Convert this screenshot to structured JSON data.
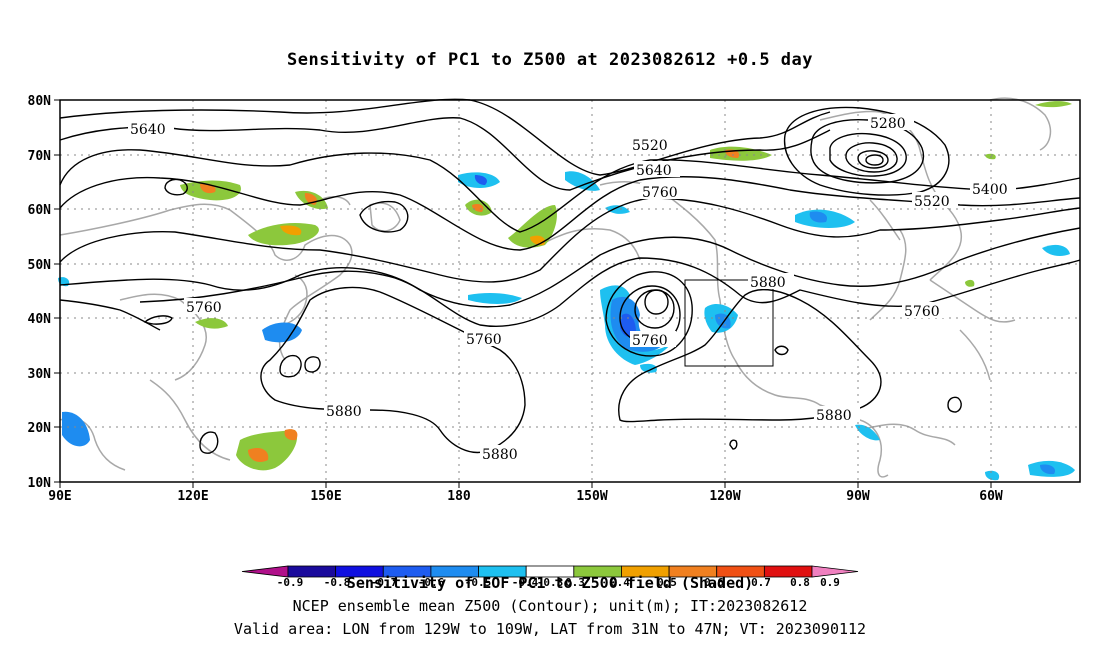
{
  "title": "Sensitivity of PC1 to Z500 at 2023082612 +0.5 day",
  "footer": {
    "colorbar_title": "Sensitivity of EOF PC1 to Z500 field (Shaded)",
    "model_line": "NCEP ensemble mean Z500 (Contour); unit(m); IT:2023082612",
    "valid_line": "Valid area: LON from 129W to 109W, LAT from 31N to 47N; VT: 2023090112"
  },
  "axes": {
    "x_ticks": [
      "90E",
      "120E",
      "150E",
      "180",
      "150W",
      "120W",
      "90W",
      "60W"
    ],
    "y_ticks": [
      "80N",
      "70N",
      "60N",
      "50N",
      "40N",
      "30N",
      "20N",
      "10N"
    ]
  },
  "contour_labels": [
    "5640",
    "5520",
    "5640",
    "5760",
    "5280",
    "5400",
    "5520",
    "5760",
    "5880",
    "5760",
    "5760",
    "5880",
    "5880",
    "5880",
    "5760"
  ],
  "colorbar": {
    "labels": [
      "-0.9",
      "-0.8",
      "-0.7",
      "-0.6",
      "-0.5",
      "-0.4",
      "-0.3",
      "0.3",
      "0.4",
      "0.5",
      "0.6",
      "0.7",
      "0.8",
      "0.9"
    ],
    "colors": [
      "#b0108a",
      "#1a0a9c",
      "#1010e0",
      "#1e5cf0",
      "#1e8cf0",
      "#1ec0f0",
      "#ffffff",
      "#8cc83c",
      "#f0a000",
      "#f08020",
      "#f05014",
      "#e01010",
      "#f080c0"
    ],
    "semantics": "sensitivity shading scale; negative blue, positive green-orange-red"
  },
  "colors": {
    "contour": "#000000",
    "coastline": "#a8a8a8",
    "grid": "#888888"
  }
}
